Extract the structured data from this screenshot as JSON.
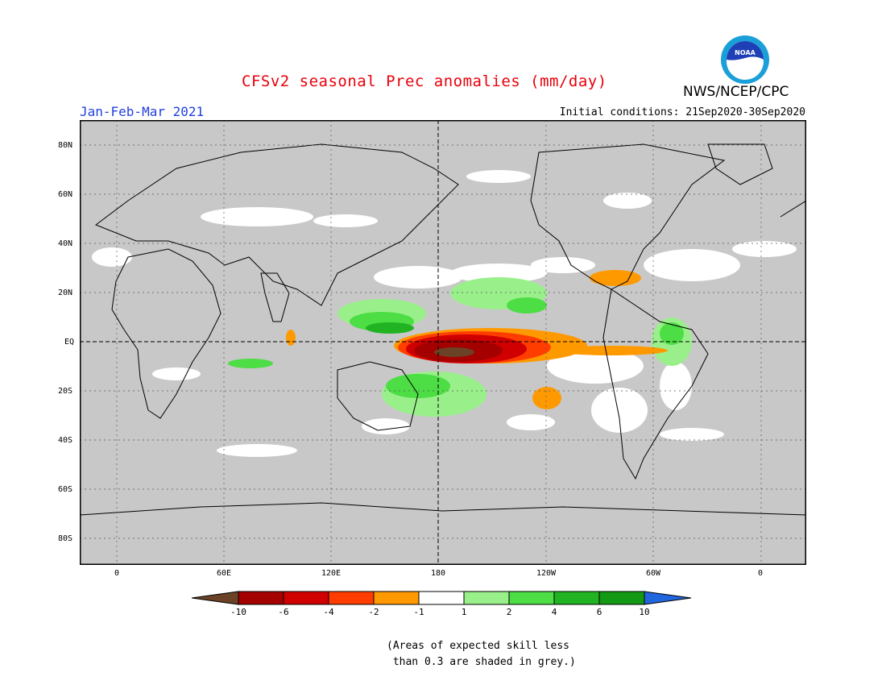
{
  "title": "CFSv2 seasonal Prec anomalies (mm/day)",
  "season": "Jan-Feb-Mar 2021",
  "initial_conditions": "Initial conditions: 21Sep2020-30Sep2020",
  "agency": "NWS/NCEP/CPC",
  "logo_text": "NOAA",
  "lat_labels": [
    "80N",
    "60N",
    "40N",
    "20N",
    "EQ",
    "20S",
    "40S",
    "60S",
    "80S"
  ],
  "lon_labels": [
    "0",
    "60E",
    "120E",
    "180",
    "120W",
    "60W",
    "0"
  ],
  "colorbar": {
    "labels": [
      "-10",
      "-6",
      "-4",
      "-2",
      "-1",
      "1",
      "2",
      "4",
      "6",
      "10"
    ],
    "colors": [
      "#6b4226",
      "#a50000",
      "#d10000",
      "#ff3d00",
      "#ff9900",
      "#ffffff",
      "#99f08a",
      "#4ddd45",
      "#22b322",
      "#149914",
      "#2266dd"
    ]
  },
  "note_line1": "(Areas of expected skill less",
  "note_line2": " than 0.3 are shaded in grey.)",
  "colors": {
    "grey_mask": "#c8c8c8",
    "title": "#e8000b",
    "season": "#1f3fdf"
  }
}
